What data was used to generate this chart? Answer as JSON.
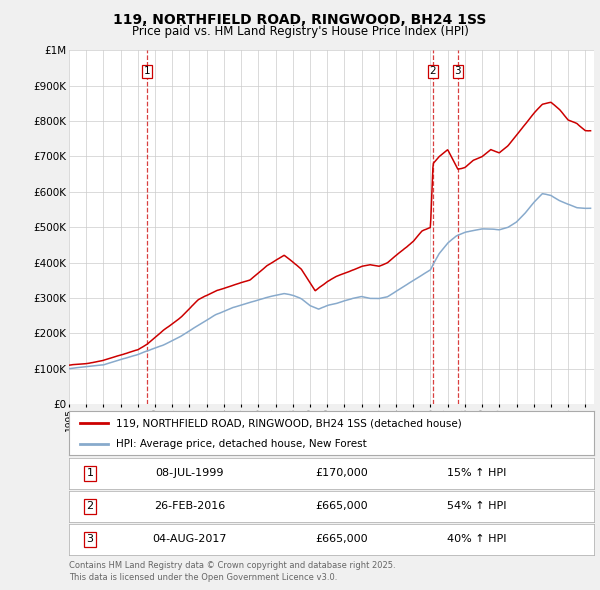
{
  "title": "119, NORTHFIELD ROAD, RINGWOOD, BH24 1SS",
  "subtitle": "Price paid vs. HM Land Registry's House Price Index (HPI)",
  "ytick_values": [
    0,
    100000,
    200000,
    300000,
    400000,
    500000,
    600000,
    700000,
    800000,
    900000,
    1000000
  ],
  "ylim": [
    0,
    1000000
  ],
  "xlim_start": 1995.0,
  "xlim_end": 2025.5,
  "legend_line1": "119, NORTHFIELD ROAD, RINGWOOD, BH24 1SS (detached house)",
  "legend_line2": "HPI: Average price, detached house, New Forest",
  "transactions": [
    {
      "num": 1,
      "date": "08-JUL-1999",
      "price": "£170,000",
      "hpi_pct": "15% ↑ HPI",
      "x": 1999.52
    },
    {
      "num": 2,
      "date": "26-FEB-2016",
      "price": "£665,000",
      "hpi_pct": "54% ↑ HPI",
      "x": 2016.15
    },
    {
      "num": 3,
      "date": "04-AUG-2017",
      "price": "£665,000",
      "hpi_pct": "40% ↑ HPI",
      "x": 2017.59
    }
  ],
  "footnote1": "Contains HM Land Registry data © Crown copyright and database right 2025.",
  "footnote2": "This data is licensed under the Open Government Licence v3.0.",
  "line_color_red": "#cc0000",
  "line_color_blue": "#88aacc",
  "dashed_line_color": "#cc0000",
  "background_color": "#f0f0f0",
  "plot_bg_color": "#ffffff",
  "grid_color": "#cccccc"
}
